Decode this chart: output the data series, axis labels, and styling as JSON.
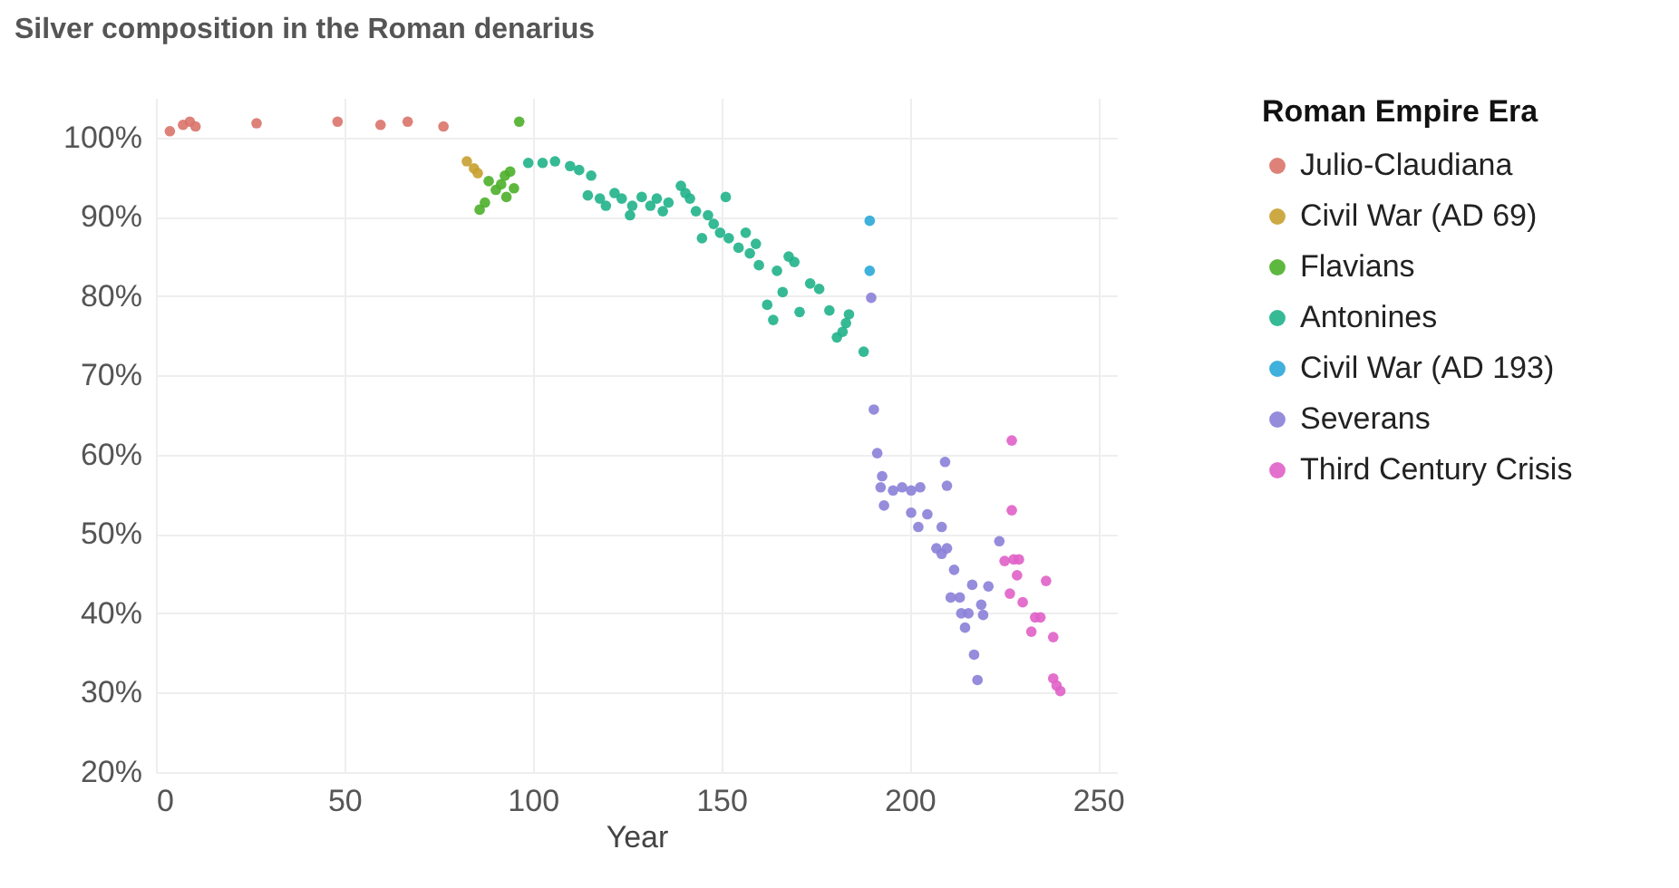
{
  "chart_data": {
    "type": "scatter",
    "title": "Silver composition in the Roman denarius",
    "xlabel": "Year",
    "legend_title": "Roman Empire Era",
    "legend": "right",
    "grid": true,
    "marker": "circle",
    "xlim": [
      0,
      255
    ],
    "xticks": [
      0,
      50,
      100,
      150,
      200,
      250
    ],
    "ylim": [
      20,
      105
    ],
    "yticks": [
      {
        "value": 20,
        "label": "20%"
      },
      {
        "value": 30,
        "label": "30%"
      },
      {
        "value": 40,
        "label": "40%"
      },
      {
        "value": 50,
        "label": "50%"
      },
      {
        "value": 60,
        "label": "60%"
      },
      {
        "value": 70,
        "label": "70%"
      },
      {
        "value": 80,
        "label": "80%"
      },
      {
        "value": 90,
        "label": "90%"
      },
      {
        "value": 100,
        "label": "100%"
      }
    ],
    "series": [
      {
        "name": "Julio-Claudiana",
        "color": "#d9736a",
        "x": [
          3.7,
          7.2,
          9,
          10.5,
          26.7,
          48.2,
          59.6,
          66.8,
          76.3
        ],
        "values": [
          100.8,
          101.6,
          102,
          101.4,
          101.8,
          102,
          101.6,
          102,
          101.4
        ]
      },
      {
        "name": "Civil War (AD 69)",
        "color": "#c8a030",
        "x": [
          82.5,
          84.4,
          85.4
        ],
        "values": [
          97,
          96.1,
          95.5
        ]
      },
      {
        "name": "Flavians",
        "color": "#4caf2a",
        "x": [
          96.4,
          85.9,
          87.3,
          88.3,
          90.2,
          91.6,
          93,
          94,
          95,
          92.6
        ],
        "values": [
          102,
          90.9,
          91.8,
          94.5,
          93.4,
          94.1,
          92.5,
          95.7,
          93.6,
          95.2
        ]
      },
      {
        "name": "Antonines",
        "color": "#20b28a",
        "x": [
          98.8,
          102.6,
          105.9,
          109.9,
          112.3,
          115.5,
          114.6,
          117.8,
          119.4,
          121.7,
          123.6,
          125.8,
          126.4,
          128.9,
          131.2,
          132.9,
          134.5,
          136,
          139.3,
          140.5,
          141.7,
          143.3,
          144.9,
          146.5,
          148,
          151.2,
          149.7,
          152,
          154.6,
          156.5,
          157.6,
          159.2,
          160,
          162.2,
          163.8,
          164.8,
          166.3,
          167.9,
          169.4,
          170.8,
          173.6,
          176,
          178.7,
          180.7,
          182.2,
          183.9,
          183.1,
          187.8
        ],
        "values": [
          96.8,
          96.8,
          97,
          96.4,
          95.9,
          95.2,
          92.7,
          92.3,
          91.4,
          93,
          92.3,
          90.2,
          91.4,
          92.5,
          91.4,
          92.3,
          90.7,
          91.8,
          93.9,
          93,
          92.3,
          90.7,
          87.3,
          90.2,
          89.1,
          92.5,
          88,
          87.3,
          86.1,
          88,
          85.4,
          86.6,
          83.9,
          78.9,
          77,
          83.2,
          80.5,
          85,
          84.3,
          78,
          81.6,
          80.9,
          78.2,
          74.8,
          75.5,
          77.7,
          76.6,
          73
        ]
      },
      {
        "name": "Civil War (AD 193)",
        "color": "#2aa8d8",
        "x": [
          189.4,
          189.4
        ],
        "values": [
          89.5,
          83.2
        ]
      },
      {
        "name": "Severans",
        "color": "#8a80d8",
        "x": [
          189.8,
          190.5,
          191.4,
          192.7,
          192.3,
          193.2,
          195.6,
          198,
          200.4,
          202.8,
          200.4,
          202.3,
          204.7,
          209.4,
          209.9,
          208.5,
          207.1,
          208.5,
          209.9,
          211.8,
          210.9,
          213.3,
          213.7,
          215.6,
          214.7,
          216.6,
          219,
          219.5,
          220.9,
          217.1,
          218,
          223.8
        ],
        "values": [
          79.8,
          65.7,
          60.2,
          57.3,
          55.9,
          53.6,
          55.5,
          55.9,
          55.5,
          55.9,
          52.7,
          50.9,
          52.5,
          59.1,
          56.1,
          50.9,
          48.2,
          47.5,
          48.2,
          45.5,
          42,
          42,
          40,
          40,
          38.2,
          43.6,
          41.1,
          39.8,
          43.4,
          34.8,
          31.6,
          49.1
        ]
      },
      {
        "name": "Third Century Crisis",
        "color": "#e060c8",
        "x": [
          227.1,
          227.1,
          225.2,
          227.6,
          229,
          228.5,
          226.6,
          230,
          236.2,
          233.3,
          234.7,
          232.3,
          238.1,
          238.1,
          239,
          240
        ],
        "values": [
          61.8,
          53,
          46.6,
          46.8,
          46.8,
          44.8,
          42.5,
          41.4,
          44.1,
          39.5,
          39.5,
          37.7,
          37,
          31.8,
          30.9,
          30.2
        ]
      }
    ]
  }
}
